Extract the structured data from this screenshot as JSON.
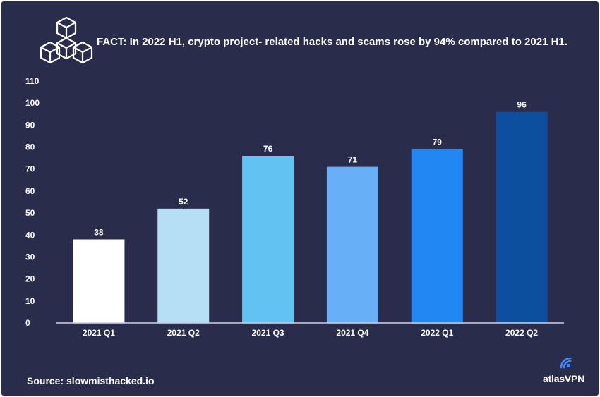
{
  "header": {
    "title": "FACT: In 2022 H1, crypto project- related hacks and scams rose by 94% compared to 2021 H1."
  },
  "footer": {
    "source": "Source: slowmisthacked.io",
    "brand": "atlasVPN"
  },
  "icons": {
    "header_icon": "cubes-icon",
    "brand_icon": "atlas-signal-icon"
  },
  "colors": {
    "background": "#2a2c4c",
    "text": "#ffffff",
    "axis": "#cfd3ea"
  },
  "chart_data": {
    "type": "bar",
    "categories": [
      "2021 Q1",
      "2021 Q2",
      "2021 Q3",
      "2021 Q4",
      "2022 Q1",
      "2022 Q2"
    ],
    "values": [
      38,
      52,
      76,
      71,
      79,
      96
    ],
    "data_labels": [
      "38",
      "52",
      "76",
      "71",
      "79",
      "96"
    ],
    "bar_colors": [
      "#ffffff",
      "#b6def4",
      "#62c3f2",
      "#67aff7",
      "#2188f3",
      "#0b4f9e"
    ],
    "title": "FACT: In 2022 H1, crypto project- related hacks and scams rose by 94% compared to 2021 H1.",
    "xlabel": "",
    "ylabel": "",
    "ylim": [
      0,
      110
    ],
    "yticks": [
      "0",
      "10",
      "20",
      "30",
      "40",
      "50",
      "60",
      "70",
      "80",
      "90",
      "100",
      "110"
    ],
    "grid": false,
    "legend": "none"
  }
}
